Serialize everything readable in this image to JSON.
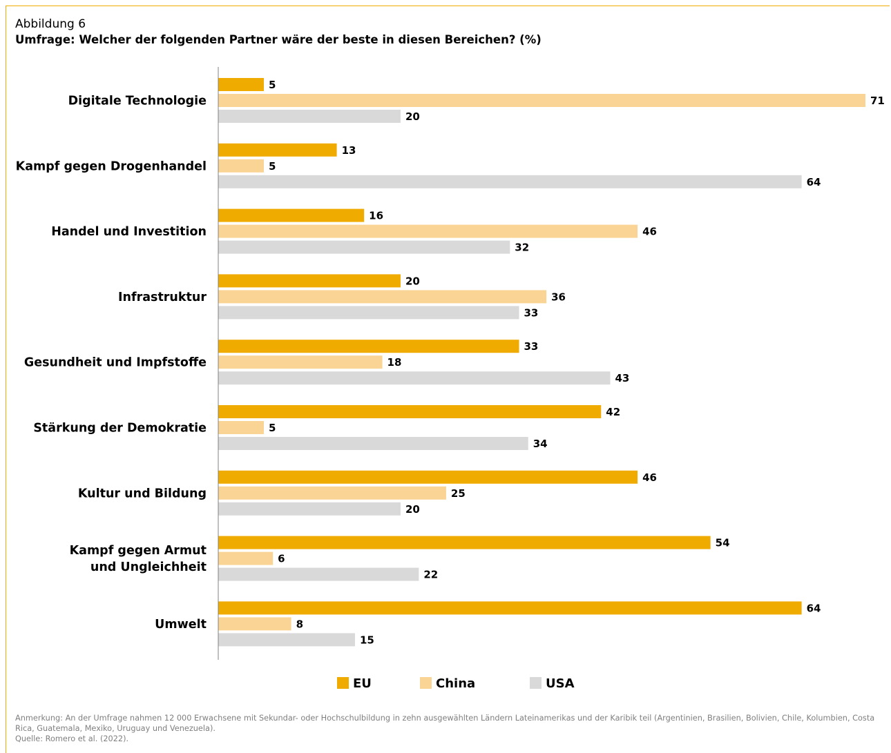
{
  "figure_label": "Abbildung 6",
  "colors": {
    "EU": "#f0ab00",
    "China": "#fad494",
    "USA": "#d9d9d9",
    "frame": "#f0ab00",
    "axis": "#808080"
  },
  "chart_data": {
    "type": "bar",
    "orientation": "horizontal",
    "title": "Umfrage: Welcher der folgenden Partner wäre der beste in diesen Bereichen? (%)",
    "categories": [
      [
        "Digitale Technologie"
      ],
      [
        "Kampf gegen Drogenhandel"
      ],
      [
        "Handel und Investition"
      ],
      [
        "Infrastruktur"
      ],
      [
        "Gesundheit und Impfstoffe"
      ],
      [
        "Stärkung der Demokratie"
      ],
      [
        "Kultur und Bildung"
      ],
      [
        "Kampf gegen Armut",
        "und Ungleichheit"
      ],
      [
        "Umwelt"
      ]
    ],
    "series": [
      {
        "name": "EU",
        "values": [
          5,
          13,
          16,
          20,
          33,
          42,
          46,
          54,
          64
        ]
      },
      {
        "name": "China",
        "values": [
          71,
          5,
          46,
          36,
          18,
          5,
          25,
          6,
          8
        ]
      },
      {
        "name": "USA",
        "values": [
          20,
          64,
          32,
          33,
          43,
          34,
          20,
          22,
          15
        ]
      }
    ],
    "xlim": [
      0,
      71
    ],
    "data_labels": true,
    "grid": false,
    "legend": "bottom"
  },
  "notes": {
    "anmerkung": "Anmerkung: An der Umfrage nahmen 12 000 Erwachsene mit Sekundar- oder Hochschulbildung in zehn ausgewählten Ländern Lateinamerikas und der Karibik teil (Argentinien, Brasilien, Bolivien, Chile, Kolumbien, Costa Rica, Guatemala, Mexiko, Uruguay und Venezuela).",
    "quelle": "Quelle: Romero et al. (2022)."
  }
}
